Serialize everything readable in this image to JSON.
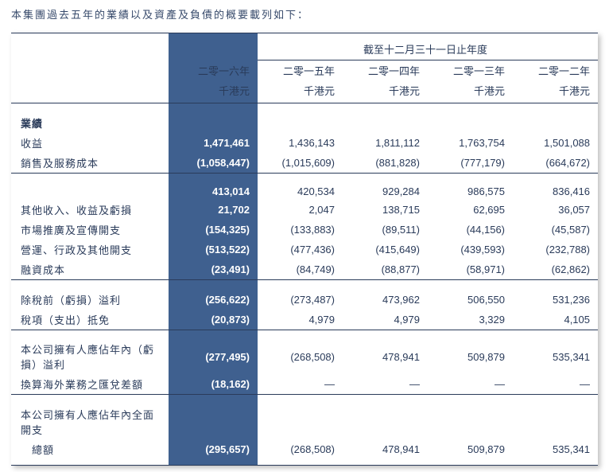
{
  "intro": "本集團過去五年的業績以及資產及負債的概要載列如下：",
  "colors": {
    "text": "#2a3b5a",
    "highlight_bg": "#3f608f",
    "highlight_text": "#ffffff",
    "border": "#2a3b5a"
  },
  "header": {
    "span_label": "截至十二月三十一日止年度",
    "years": [
      "二零一六年",
      "二零一五年",
      "二零一四年",
      "二零一三年",
      "二零一二年"
    ],
    "unit": "千港元"
  },
  "rows": {
    "perf_label": "業績",
    "revenue_label": "收益",
    "revenue": [
      "1,471,461",
      "1,436,143",
      "1,811,112",
      "1,763,754",
      "1,501,088"
    ],
    "cos_label": "銷售及服務成本",
    "cos": [
      "(1,058,447)",
      "(1,015,609)",
      "(881,828)",
      "(777,179)",
      "(664,672)"
    ],
    "gross": [
      "413,014",
      "420,534",
      "929,284",
      "986,575",
      "836,416"
    ],
    "other_income_label": "其他收入、收益及虧損",
    "other_income": [
      "21,702",
      "2,047",
      "138,715",
      "62,695",
      "36,057"
    ],
    "marketing_label": "市場推廣及宣傳開支",
    "marketing": [
      "(154,325)",
      "(133,883)",
      "(89,511)",
      "(44,156)",
      "(45,587)"
    ],
    "admin_label": "營運、行政及其他開支",
    "admin": [
      "(513,522)",
      "(477,436)",
      "(415,649)",
      "(439,593)",
      "(232,788)"
    ],
    "finance_label": "融資成本",
    "finance": [
      "(23,491)",
      "(84,749)",
      "(88,877)",
      "(58,971)",
      "(62,862)"
    ],
    "pbt_label": "除稅前（虧損）溢利",
    "pbt": [
      "(256,622)",
      "(273,487)",
      "473,962",
      "506,550",
      "531,236"
    ],
    "tax_label": "稅項（支出）抵免",
    "tax": [
      "(20,873)",
      "4,979",
      "4,979",
      "3,329",
      "4,105"
    ],
    "owners_label": "本公司擁有人應佔年內（虧損）溢利",
    "owners": [
      "(277,495)",
      "(268,508)",
      "478,941",
      "509,879",
      "535,341"
    ],
    "fx_label": "換算海外業務之匯兌差額",
    "fx": [
      "(18,162)",
      "—",
      "—",
      "—",
      "—"
    ],
    "total_label_l1": "本公司擁有人應佔年內全面開支",
    "total_label_l2": "總額",
    "total": [
      "(295,657)",
      "(268,508)",
      "478,941",
      "509,879",
      "535,341"
    ]
  }
}
